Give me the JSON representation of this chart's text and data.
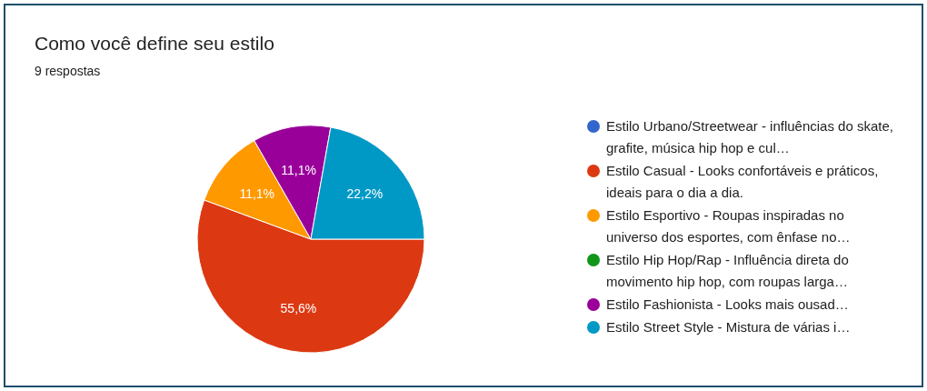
{
  "chart_data": {
    "type": "pie",
    "title": "Como você define seu estilo",
    "subtitle": "9 respostas",
    "categories": [
      "Estilo Urbano/Streetwear - influências do skate, grafite, música hip hop e cul…",
      "Estilo Casual - Looks confortáveis e práticos, ideais para o dia a dia.",
      "Estilo Esportivo - Roupas inspiradas no universo dos esportes, com ênfase no…",
      "Estilo Hip Hop/Rap - Influência direta do movimento hip hop, com roupas larga…",
      "Estilo Fashionista - Looks mais ousad…",
      "Estilo Street Style - Mistura de várias i…"
    ],
    "values": [
      0,
      55.6,
      11.1,
      0,
      11.1,
      22.2
    ],
    "colors": [
      "#3366cc",
      "#dc3912",
      "#ff9900",
      "#109618",
      "#990099",
      "#0099c6"
    ],
    "value_labels": [
      null,
      "55,6%",
      "11,1%",
      null,
      "11,1%",
      "22,2%"
    ],
    "legend": "right"
  }
}
